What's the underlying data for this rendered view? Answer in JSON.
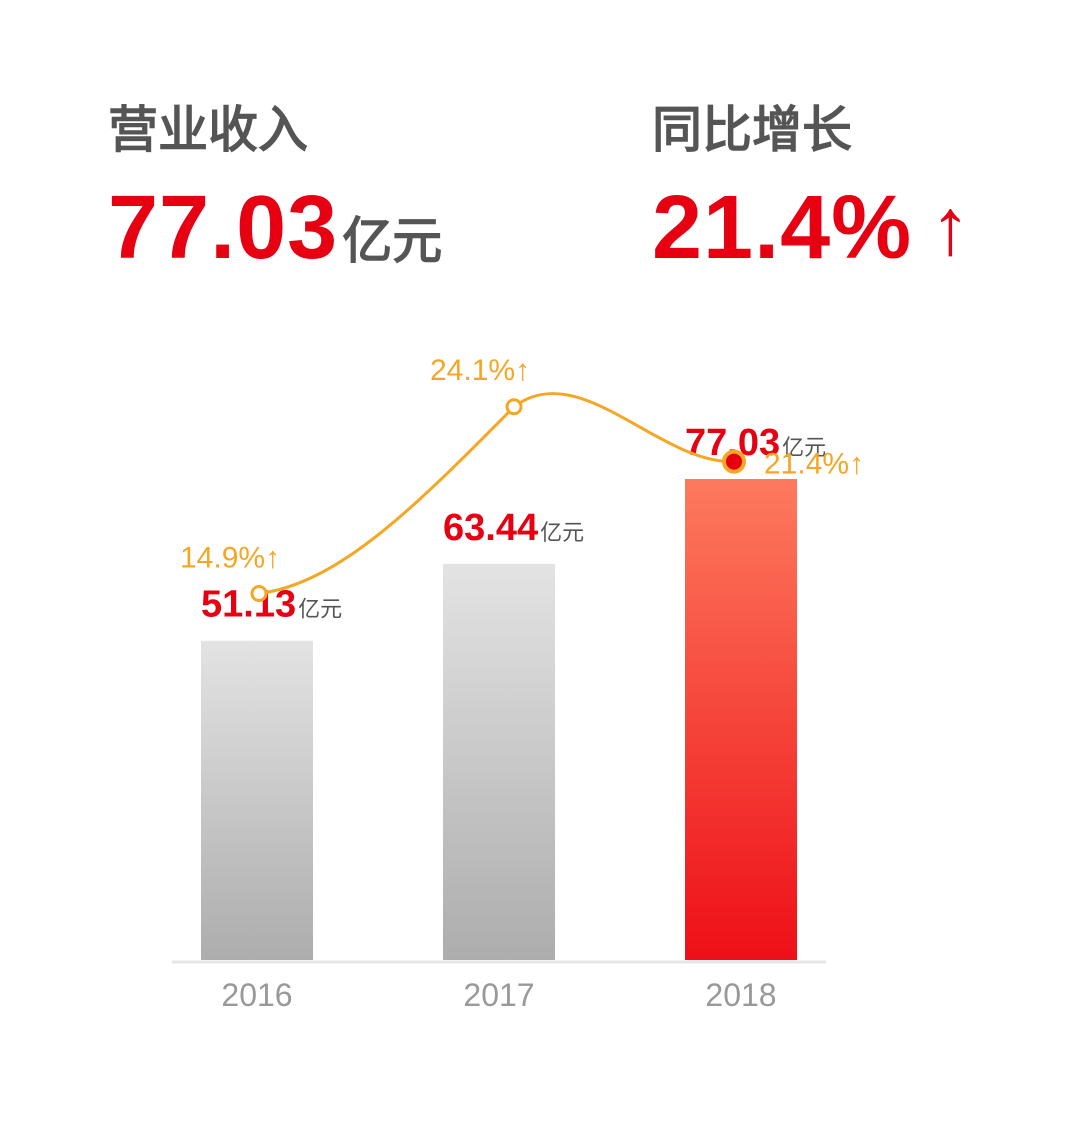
{
  "headline_left": {
    "label": "营业收入",
    "value": "77.03",
    "unit": "亿元"
  },
  "headline_right": {
    "label": "同比增长",
    "value": "21.4%",
    "arrow": "↑"
  },
  "colors": {
    "accent_red": "#e60012",
    "label_gray": "#555555",
    "growth_orange": "#f5a623",
    "axis_gray": "#e6e6e6"
  },
  "chart_data": {
    "type": "bar",
    "categories": [
      "2016",
      "2017",
      "2018"
    ],
    "series": [
      {
        "values": [
          51.13,
          63.44,
          77.03
        ]
      }
    ],
    "value_labels": [
      "51.13",
      "63.44",
      "77.03"
    ],
    "value_unit": "亿元",
    "growth_line": {
      "type": "line",
      "values": [
        14.9,
        24.1,
        21.4
      ],
      "labels": [
        "14.9%↑",
        "24.1%↑",
        "21.4%↑"
      ]
    },
    "title": "",
    "xlabel": "",
    "ylabel": "",
    "ylim": [
      0,
      80
    ],
    "grid": false,
    "highlight_category": "2018"
  }
}
